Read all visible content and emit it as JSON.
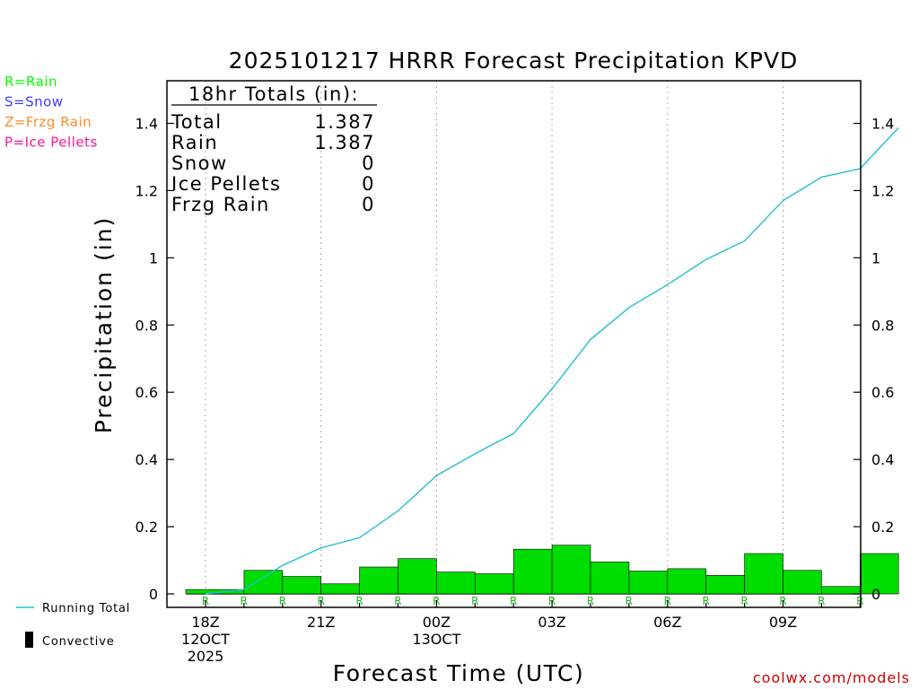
{
  "chart_data": {
    "type": "bar",
    "title": "2025101217 HRRR Forecast Precipitation KPVD",
    "xlabel": "Forecast Time (UTC)",
    "ylabel": "Precipitation (in)",
    "ylim": [
      0,
      1.5
    ],
    "yticks": [
      0,
      0.2,
      0.4,
      0.6,
      0.8,
      1,
      1.2,
      1.4
    ],
    "x_hours": [
      1,
      2,
      3,
      4,
      5,
      6,
      7,
      8,
      9,
      10,
      11,
      12,
      13,
      14,
      15,
      16,
      17,
      18
    ],
    "x_major_ticks": [
      {
        "hour": 0,
        "lines": [
          "18Z",
          "12OCT",
          "2025"
        ]
      },
      {
        "hour": 3,
        "lines": [
          "21Z"
        ]
      },
      {
        "hour": 6,
        "lines": [
          "00Z",
          "13OCT"
        ]
      },
      {
        "hour": 9,
        "lines": [
          "03Z"
        ]
      },
      {
        "hour": 12,
        "lines": [
          "06Z"
        ]
      },
      {
        "hour": 15,
        "lines": [
          "09Z"
        ]
      }
    ],
    "series": [
      {
        "name": "Rain",
        "kind": "bar",
        "values": [
          0.013,
          0.07,
          0.052,
          0.03,
          0.08,
          0.105,
          0.065,
          0.06,
          0.133,
          0.145,
          0.095,
          0.068,
          0.075,
          0.055,
          0.12,
          0.07,
          0.022,
          0.12
        ]
      },
      {
        "name": "Running Total",
        "kind": "line",
        "values": [
          0.013,
          0.085,
          0.137,
          0.167,
          0.247,
          0.352,
          0.417,
          0.477,
          0.61,
          0.757,
          0.852,
          0.92,
          0.995,
          1.05,
          1.17,
          1.24,
          1.265,
          1.387
        ]
      }
    ],
    "ptype_labels": [
      "R",
      "R",
      "R",
      "R",
      "R",
      "R",
      "R",
      "R",
      "R",
      "R",
      "R",
      "R",
      "R",
      "R",
      "R",
      "R",
      "R",
      "R"
    ],
    "totals_box": {
      "header": "18hr Totals (in):",
      "rows": [
        {
          "label": "Total",
          "value": "1.387"
        },
        {
          "label": "Rain",
          "value": "1.387"
        },
        {
          "label": "Snow",
          "value": "0"
        },
        {
          "label": "Ice Pellets",
          "value": "0"
        },
        {
          "label": "Frzg Rain",
          "value": "0"
        }
      ]
    },
    "ptype_legend": [
      {
        "text": "R=Rain",
        "color": "#00ff00"
      },
      {
        "text": "S=Snow",
        "color": "#3c3cff"
      },
      {
        "text": "Z=Frzg Rain",
        "color": "#ff8c28"
      },
      {
        "text": "P=Ice Pellets",
        "color": "#ff1493"
      }
    ],
    "bottom_legend": [
      {
        "text": "Running Total",
        "symbol": "line",
        "color": "#20c0d0"
      },
      {
        "text": "Convective",
        "symbol": "bar",
        "color": "#000000"
      }
    ],
    "credit": "coolwx.com/models",
    "colors": {
      "bar": "#00dd00",
      "line": "#20c0d0",
      "ptype_label": "#22bb22",
      "credit": "#cc0000",
      "grid": "#aaaaaa"
    }
  }
}
